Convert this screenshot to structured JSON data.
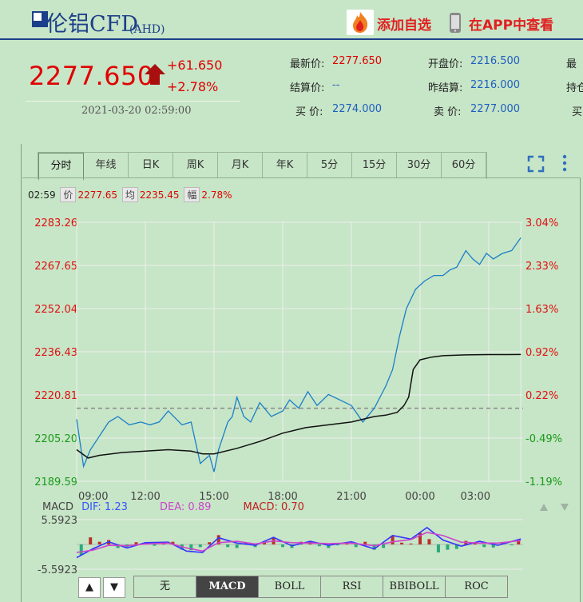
{
  "header": {
    "title": "伦铝CFD",
    "subtitle": "(AHD)",
    "add_label": "添加自选",
    "app_label": "在APP中查看"
  },
  "quote": {
    "price": "2277.650",
    "change": "+61.650",
    "change_pct": "+2.78%",
    "time": "2021-03-20 02:59:00",
    "fields": [
      {
        "label": "最新价:",
        "value": "2277.650",
        "color": "#e00000"
      },
      {
        "label": "开盘价:",
        "value": "2216.500",
        "color": "#1f5fbf"
      },
      {
        "label": "最",
        "value": "",
        "color": "#222"
      },
      {
        "label": "结算价:",
        "value": "--",
        "color": "#1f5fbf"
      },
      {
        "label": "昨结算:",
        "value": "2216.000",
        "color": "#1f5fbf"
      },
      {
        "label": "持仓",
        "value": "",
        "color": "#222"
      },
      {
        "label": "买  价:",
        "value": "2274.000",
        "color": "#1f5fbf"
      },
      {
        "label": "卖  价:",
        "value": "2277.000",
        "color": "#1f5fbf"
      },
      {
        "label": "买",
        "value": "",
        "color": "#222"
      }
    ]
  },
  "tabs": [
    "分时",
    "年线",
    "日K",
    "周K",
    "月K",
    "年K",
    "5分",
    "15分",
    "30分",
    "60分"
  ],
  "active_tab": 0,
  "info": {
    "time": "02:59",
    "price_tag": "价",
    "price": "2277.65",
    "avg_tag": "均",
    "avg": "2235.45",
    "pct_tag": "幅",
    "pct": "2.78%"
  },
  "indicator": {
    "name": "MACD",
    "dif": "DIF: 1.23",
    "dea": "DEA: 0.89",
    "macd": "MACD: 0.70",
    "tabs": [
      "无",
      "MACD",
      "BOLL",
      "RSI",
      "BBIBOLL",
      "ROC"
    ],
    "active": 1,
    "up_label": "▲",
    "down_label": "▼"
  },
  "chart_data": [
    {
      "type": "line",
      "title": "",
      "x_ticks": [
        "09:00",
        "12:00",
        "15:00",
        "18:00",
        "21:00",
        "00:00",
        "03:00"
      ],
      "y_ticks": [
        "2283.26",
        "2267.65",
        "2252.04",
        "2236.43",
        "2220.81",
        "2205.20",
        "2189.59"
      ],
      "y_right_ticks": [
        "3.04%",
        "2.33%",
        "1.63%",
        "0.92%",
        "0.22%",
        "-0.49%",
        "-1.19%"
      ],
      "ylim": [
        2189.59,
        2283.26
      ],
      "reference": 2216.0,
      "series": [
        {
          "color": "#1a7fc8",
          "x": [
            0,
            0.3,
            0.6,
            1.0,
            1.4,
            1.8,
            2.3,
            2.8,
            3.2,
            3.6,
            4.0,
            4.6,
            5.0,
            5.4,
            5.8,
            6.0,
            6.2,
            6.4,
            6.6,
            6.8,
            7.0,
            7.3,
            7.6,
            8.0,
            8.5,
            9.0,
            9.3,
            9.7,
            10.1,
            10.5,
            11.0,
            11.5,
            12.0,
            12.5,
            13.0,
            13.5,
            13.8,
            14.1,
            14.4,
            14.8,
            15.2,
            15.6,
            16.0,
            16.3,
            16.6,
            17.0,
            17.3,
            17.6,
            17.9,
            18.2,
            18.6,
            19.0,
            19.4
          ],
          "y": [
            2212,
            2195,
            2201,
            2206,
            2211,
            2213,
            2210,
            2211,
            2210,
            2211,
            2215,
            2210,
            2211,
            2196,
            2199,
            2193,
            2201,
            2206,
            2211,
            2213,
            2220,
            2213,
            2211,
            2218,
            2213,
            2215,
            2219,
            2216,
            2222,
            2217,
            2221,
            2219,
            2217,
            2211,
            2216,
            2224,
            2230,
            2242,
            2252,
            2259,
            2262,
            2264,
            2264,
            2266,
            2267,
            2273,
            2270,
            2268,
            2272,
            2270,
            2272,
            2273,
            2277.65
          ]
        },
        {
          "color": "#111111",
          "x": [
            0,
            0.5,
            1.0,
            2.0,
            3.0,
            4.0,
            5.0,
            5.5,
            6.0,
            7.0,
            8.0,
            9.0,
            10.0,
            11.0,
            12.0,
            13.0,
            13.5,
            14.0,
            14.3,
            14.5,
            14.7,
            15.0,
            15.5,
            16.0,
            17.0,
            18.0,
            19.4
          ],
          "y": [
            2201,
            2198,
            2199,
            2200,
            2200.5,
            2201,
            2200.5,
            2199.5,
            2199.5,
            2201.5,
            2204,
            2207,
            2209,
            2210,
            2211,
            2213,
            2213.5,
            2214.5,
            2217,
            2220,
            2230,
            2233.5,
            2234.5,
            2235,
            2235.3,
            2235.4,
            2235.45
          ]
        }
      ]
    },
    {
      "type": "bar",
      "title": "MACD",
      "ylim": [
        -5.5923,
        5.5923
      ],
      "y_ticks": [
        "5.5923",
        "-5.5923"
      ],
      "series": [
        {
          "name": "DIF",
          "color": "#3333ff",
          "x": [
            0,
            0.7,
            1.4,
            2.2,
            3.0,
            4.0,
            4.8,
            5.5,
            6.2,
            7.0,
            7.8,
            8.6,
            9.4,
            10.2,
            11.0,
            12.0,
            13.0,
            13.8,
            14.6,
            15.3,
            16.0,
            16.8,
            17.6,
            18.4,
            19.4
          ],
          "y": [
            -3.0,
            -1.0,
            0.6,
            -0.8,
            0.4,
            0.5,
            -1.5,
            -1.8,
            1.5,
            0.3,
            -0.2,
            1.6,
            -0.3,
            0.7,
            -0.2,
            0.6,
            -1.0,
            2.0,
            1.2,
            3.8,
            1.0,
            -0.4,
            0.7,
            -0.2,
            1.23
          ]
        },
        {
          "name": "DEA",
          "color": "#cc44cc",
          "x": [
            0,
            0.7,
            1.4,
            2.2,
            3.0,
            4.0,
            4.8,
            5.5,
            6.2,
            7.0,
            7.8,
            8.6,
            9.4,
            10.2,
            11.0,
            12.0,
            13.0,
            13.8,
            14.6,
            15.3,
            16.0,
            16.8,
            17.6,
            18.4,
            19.4
          ],
          "y": [
            -1.8,
            -1.3,
            -0.2,
            -0.3,
            0.1,
            0.3,
            -0.8,
            -1.5,
            0.4,
            0.7,
            0.1,
            0.8,
            0.4,
            0.3,
            0.2,
            0.3,
            -0.3,
            0.6,
            1.1,
            2.7,
            2.0,
            0.5,
            0.3,
            0.3,
            0.89
          ]
        },
        {
          "name": "MACD",
          "x": [
            0.2,
            0.6,
            1.0,
            1.4,
            1.8,
            2.2,
            2.6,
            3.0,
            3.4,
            3.8,
            4.2,
            4.6,
            5.0,
            5.4,
            5.8,
            6.2,
            6.6,
            7.0,
            7.4,
            7.8,
            8.2,
            8.6,
            9.0,
            9.4,
            9.8,
            10.2,
            10.6,
            11.0,
            11.4,
            11.8,
            12.2,
            12.6,
            13.0,
            13.4,
            13.8,
            14.2,
            14.6,
            15.0,
            15.4,
            15.8,
            16.2,
            16.6,
            17.0,
            17.4,
            17.8,
            18.2,
            18.6,
            19.0,
            19.3
          ],
          "y": [
            -2.4,
            1.6,
            0.6,
            1.0,
            -0.8,
            -0.6,
            0.5,
            0.4,
            -0.3,
            0.2,
            0.6,
            -1.2,
            -1.3,
            -0.6,
            0.5,
            2.1,
            -0.6,
            -0.8,
            0.4,
            -0.6,
            0.5,
            1.6,
            -0.6,
            -0.8,
            0.6,
            0.7,
            -0.4,
            -0.8,
            -0.2,
            0.4,
            -0.6,
            0.6,
            -1.2,
            -0.8,
            2.0,
            0.4,
            0.2,
            2.6,
            1.2,
            -1.8,
            -1.2,
            -1.0,
            0.8,
            0.4,
            -0.6,
            -0.7,
            0.3,
            -0.2,
            0.7
          ]
        }
      ]
    }
  ],
  "colors": {
    "up": "#b8322a",
    "down": "#2aaa7a",
    "axis_red": "#e01010",
    "axis_green": "#1a9a1a",
    "grid": "#eeeeee",
    "ref_line": "#8a8a8a"
  }
}
